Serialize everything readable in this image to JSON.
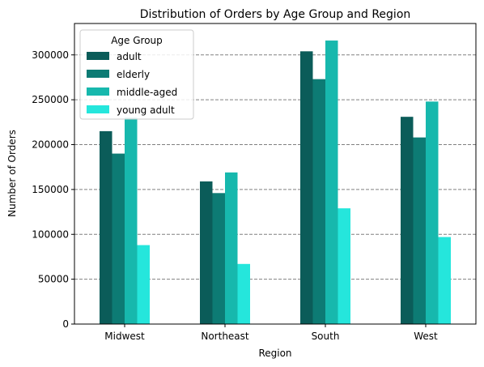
{
  "chart_data": {
    "type": "bar",
    "title": "Distribution of Orders by Age Group and Region",
    "xlabel": "Region",
    "ylabel": "Number of Orders",
    "categories": [
      "Midwest",
      "Northeast",
      "South",
      "West"
    ],
    "ylim": [
      0,
      335000
    ],
    "yticks": [
      0,
      50000,
      100000,
      150000,
      200000,
      250000,
      300000
    ],
    "grid": "y-dashed",
    "legend": {
      "title": "Age Group",
      "placement": "top-left"
    },
    "series": [
      {
        "name": "adult",
        "color": "#0b5c59",
        "values": [
          215000,
          159000,
          304000,
          231000
        ]
      },
      {
        "name": "elderly",
        "color": "#0d7b74",
        "values": [
          190000,
          146000,
          273000,
          208000
        ]
      },
      {
        "name": "middle-aged",
        "color": "#17b8ad",
        "values": [
          230000,
          169000,
          316000,
          248000
        ]
      },
      {
        "name": "young adult",
        "color": "#25e6dc",
        "values": [
          88000,
          67000,
          129000,
          97000
        ]
      }
    ]
  }
}
